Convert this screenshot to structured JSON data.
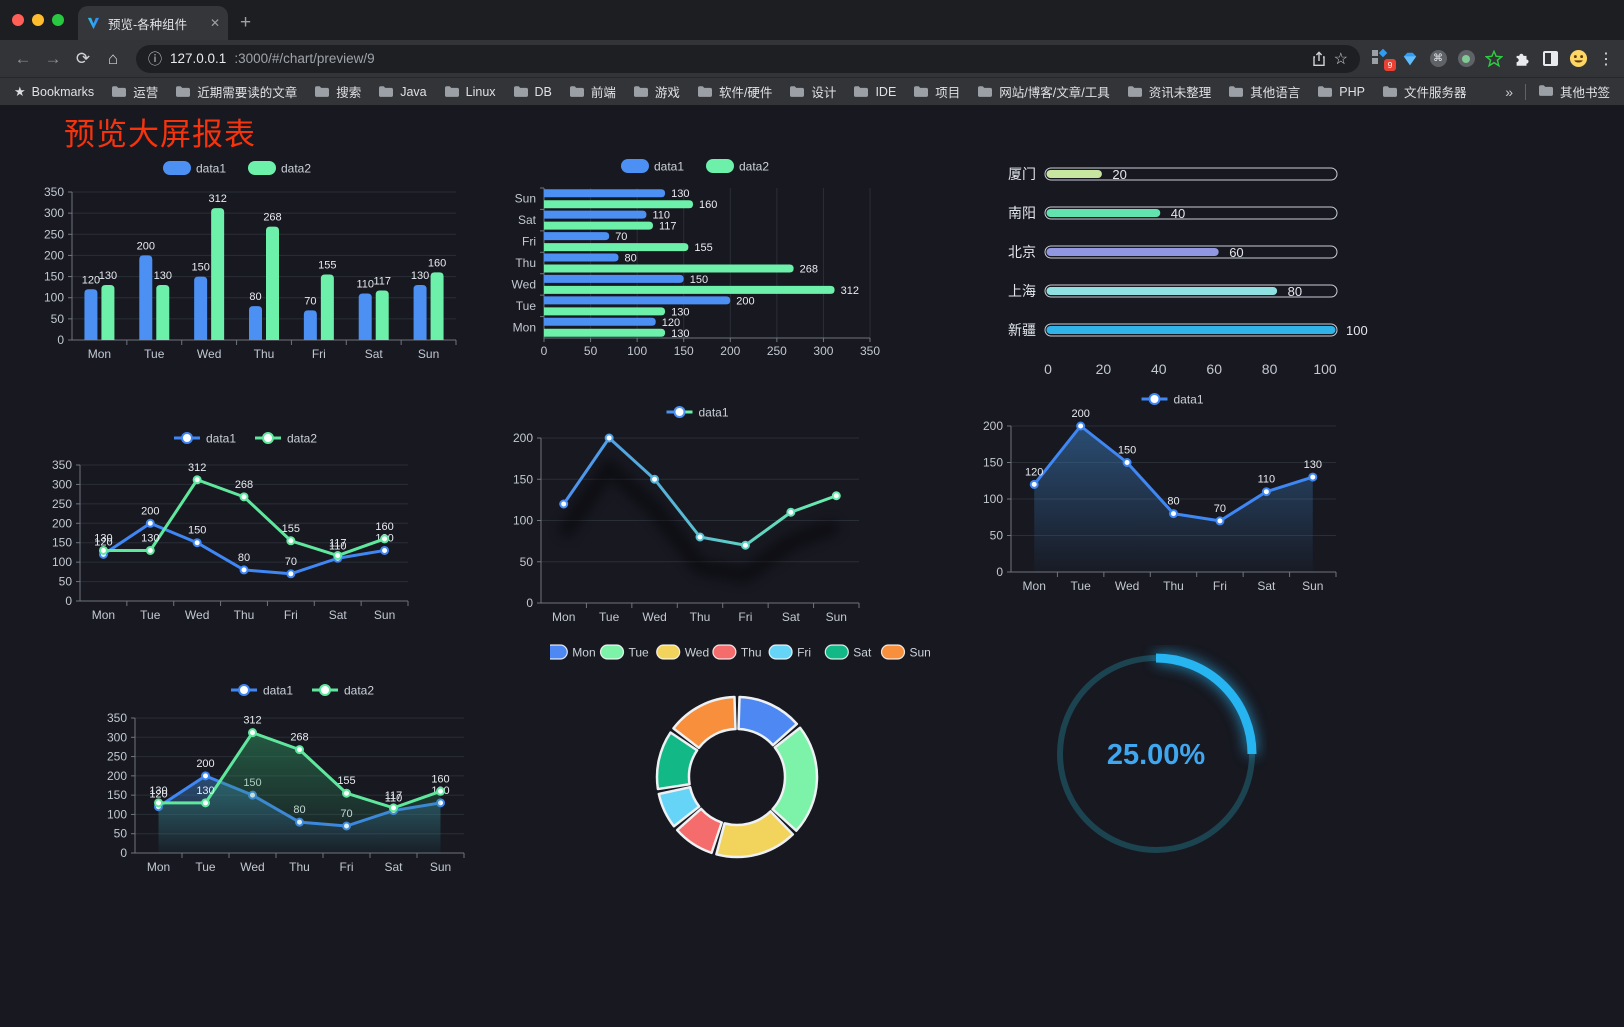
{
  "browser": {
    "traffic_lights": [
      "#ff5f57",
      "#febc2e",
      "#28c840"
    ],
    "tab_title": "预览-各种组件",
    "close_glyph": "✕",
    "new_tab_glyph": "+",
    "nav": {
      "back": "←",
      "forward": "→",
      "reload": "⟳",
      "home": "⌂",
      "info": "ⓘ",
      "star": "☆",
      "menu": "⋮",
      "cmd": "⌘"
    },
    "url_host": "127.0.0.1",
    "url_rest": ":3000/#/chart/preview/9",
    "extension_badge": "9",
    "bookmarks_bar": {
      "star_label": "Bookmarks",
      "folders": [
        "运营",
        "近期需要读的文章",
        "搜索",
        "Java",
        "Linux",
        "DB",
        "前端",
        "游戏",
        "软件/硬件",
        "设计",
        "IDE",
        "项目",
        "网站/博客/文章/工具",
        "资讯未整理",
        "其他语言",
        "PHP",
        "文件服务器"
      ],
      "overflow_glyph": "»",
      "other_bookmarks": "其他书签"
    }
  },
  "page": {
    "title": "预览大屏报表",
    "title_color": "#f5330d",
    "background": "#171820"
  },
  "chart_data": [
    {
      "id": "c1",
      "type": "bar",
      "legend_style": "pill",
      "categories": [
        "Mon",
        "Tue",
        "Wed",
        "Thu",
        "Fri",
        "Sat",
        "Sun"
      ],
      "series": [
        {
          "name": "data1",
          "color": "#4b90f2",
          "values": [
            120,
            200,
            150,
            80,
            70,
            110,
            130
          ]
        },
        {
          "name": "data2",
          "color": "#6cf0aa",
          "values": [
            130,
            130,
            312,
            268,
            155,
            117,
            160
          ]
        }
      ],
      "ylim": [
        0,
        350
      ],
      "ytick_step": 50,
      "value_labels": true,
      "grid": true
    },
    {
      "id": "c2",
      "type": "bar",
      "orientation": "horizontal",
      "legend_style": "pill",
      "categories_top_to_bottom": [
        "Sun",
        "Sat",
        "Fri",
        "Thu",
        "Wed",
        "Tue",
        "Mon"
      ],
      "series": [
        {
          "name": "data1",
          "color": "#4b90f2",
          "values_top_to_bottom": [
            130,
            110,
            70,
            80,
            150,
            200,
            120
          ]
        },
        {
          "name": "data2",
          "color": "#6cf0aa",
          "values_top_to_bottom": [
            160,
            117,
            155,
            268,
            312,
            130,
            130
          ]
        }
      ],
      "xlim": [
        0,
        350
      ],
      "xtick_step": 50,
      "value_labels": true,
      "grid": true
    },
    {
      "id": "c3",
      "type": "bar",
      "subtype": "capsule-progress",
      "items": [
        {
          "label": "厦门",
          "value": 20,
          "color": "#c7e6a0"
        },
        {
          "label": "南阳",
          "value": 40,
          "color": "#62e2ae"
        },
        {
          "label": "北京",
          "value": 60,
          "color": "#9197e0"
        },
        {
          "label": "上海",
          "value": 80,
          "color": "#8fe0e0"
        },
        {
          "label": "新疆",
          "value": 100,
          "color": "#2fb3e8"
        }
      ],
      "xlim": [
        0,
        100
      ],
      "xticks": [
        0,
        20,
        40,
        60,
        80,
        100
      ]
    },
    {
      "id": "c4",
      "type": "line",
      "legend_style": "line",
      "categories": [
        "Mon",
        "Tue",
        "Wed",
        "Thu",
        "Fri",
        "Sat",
        "Sun"
      ],
      "series": [
        {
          "name": "data1",
          "color": "#3f87f5",
          "values": [
            120,
            200,
            150,
            80,
            70,
            110,
            130
          ]
        },
        {
          "name": "data2",
          "color": "#5fe89d",
          "values": [
            130,
            130,
            312,
            268,
            155,
            117,
            160
          ]
        }
      ],
      "ylim": [
        0,
        350
      ],
      "ytick_step": 50,
      "value_labels": true,
      "grid": true
    },
    {
      "id": "c5",
      "type": "line",
      "legend_style": "line",
      "shadow": true,
      "categories": [
        "Mon",
        "Tue",
        "Wed",
        "Thu",
        "Fri",
        "Sat",
        "Sun"
      ],
      "series": [
        {
          "name": "data1",
          "colors": [
            "#4b90f2",
            "#69f0ab"
          ],
          "values": [
            120,
            200,
            150,
            80,
            70,
            110,
            130
          ]
        }
      ],
      "ylim": [
        0,
        200
      ],
      "ytick_step": 50,
      "value_labels": false,
      "grid": true
    },
    {
      "id": "c6",
      "type": "area",
      "legend_style": "line",
      "categories": [
        "Mon",
        "Tue",
        "Wed",
        "Thu",
        "Fri",
        "Sat",
        "Sun"
      ],
      "series": [
        {
          "name": "data1",
          "color": "#3f87f5",
          "area_from": "#3a79b8",
          "values": [
            120,
            200,
            150,
            80,
            70,
            110,
            130
          ]
        }
      ],
      "ylim": [
        0,
        200
      ],
      "ytick_step": 50,
      "value_labels": true,
      "grid": true
    },
    {
      "id": "c7",
      "type": "area",
      "legend_style": "line",
      "categories": [
        "Mon",
        "Tue",
        "Wed",
        "Thu",
        "Fri",
        "Sat",
        "Sun"
      ],
      "series": [
        {
          "name": "data1",
          "color": "#3f87f5",
          "area_from": "#3a79b8",
          "values": [
            120,
            200,
            150,
            80,
            70,
            110,
            130
          ]
        },
        {
          "name": "data2",
          "color": "#5fe89d",
          "area_from": "#2f8f5e",
          "values": [
            130,
            130,
            312,
            268,
            155,
            117,
            160
          ]
        }
      ],
      "ylim": [
        0,
        350
      ],
      "ytick_step": 50,
      "value_labels": true,
      "grid": true
    },
    {
      "id": "c8",
      "type": "pie",
      "inner_radius_ratio": 0.6,
      "segments": [
        {
          "label": "Mon",
          "value": 120,
          "color": "#4e88f3"
        },
        {
          "label": "Tue",
          "value": 200,
          "color": "#7df2a9"
        },
        {
          "label": "Wed",
          "value": 150,
          "color": "#f2d45c"
        },
        {
          "label": "Thu",
          "value": 80,
          "color": "#f56c6c"
        },
        {
          "label": "Fri",
          "value": 70,
          "color": "#66d4f7"
        },
        {
          "label": "Sat",
          "value": 110,
          "color": "#12b886"
        },
        {
          "label": "Sun",
          "value": 130,
          "color": "#f78f3d"
        }
      ]
    },
    {
      "id": "c9",
      "type": "gauge",
      "value_percent": 25,
      "label": "25.00%",
      "arc_color": "#27b5f2",
      "track_color": "#1c4350",
      "label_color": "#3fa7f0"
    }
  ]
}
